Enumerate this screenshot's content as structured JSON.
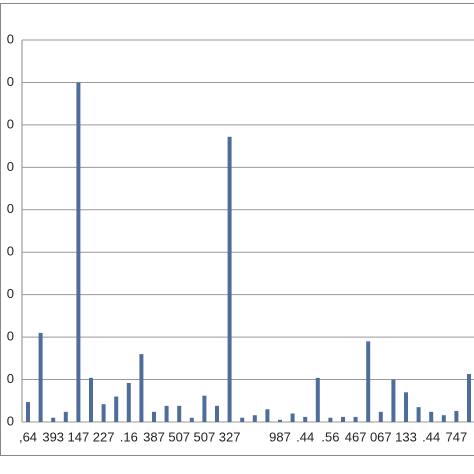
{
  "chart_data": {
    "type": "bar",
    "categories": [
      ",64",
      null,
      "393",
      null,
      "147",
      null,
      "227",
      null,
      ".16",
      null,
      "387",
      null,
      "507",
      null,
      "507",
      null,
      "327",
      null,
      null,
      null,
      "987",
      null,
      ".44",
      null,
      ".56",
      null,
      "467",
      null,
      "067",
      null,
      "133",
      null,
      ".44",
      null,
      "747",
      null
    ],
    "values": [
      0.47,
      2.1,
      0.1,
      0.24,
      8.0,
      1.04,
      0.42,
      0.6,
      0.92,
      1.6,
      0.24,
      0.38,
      0.38,
      0.1,
      0.62,
      0.38,
      6.72,
      0.1,
      0.16,
      0.3,
      0.05,
      0.2,
      0.12,
      1.04,
      0.1,
      0.12,
      0.12,
      1.9,
      0.24,
      1.0,
      0.7,
      0.35,
      0.24,
      0.16,
      0.26,
      1.13
    ],
    "color": "#4f6d9a",
    "ylim": [
      0,
      9
    ],
    "yticks": [
      {
        "value": 0,
        "label": "0"
      },
      {
        "value": 1,
        "label": "0"
      },
      {
        "value": 2,
        "label": "0"
      },
      {
        "value": 3,
        "label": "0"
      },
      {
        "value": 4,
        "label": "0"
      },
      {
        "value": 5,
        "label": "0"
      },
      {
        "value": 6,
        "label": "0"
      },
      {
        "value": 7,
        "label": "0"
      },
      {
        "value": 8,
        "label": "0"
      },
      {
        "value": 9,
        "label": "0"
      }
    ],
    "grid": true
  }
}
